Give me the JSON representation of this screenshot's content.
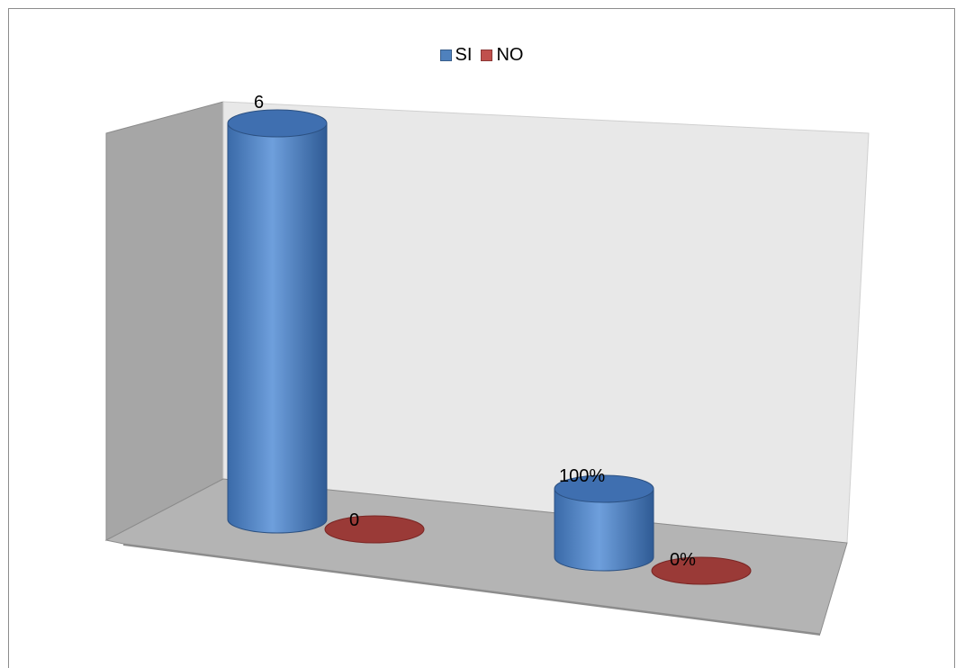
{
  "chart_data": {
    "type": "bar",
    "style": "3d-cylinder",
    "categories": [
      "",
      ""
    ],
    "series": [
      {
        "name": "SI",
        "color": "#4f81bd",
        "values": [
          6,
          1.0
        ],
        "labels": [
          "6",
          "100%"
        ]
      },
      {
        "name": "NO",
        "color": "#c0504d",
        "values": [
          0,
          0.0
        ],
        "labels": [
          "0",
          "0%"
        ]
      }
    ],
    "title": "",
    "xlabel": "",
    "ylabel": "",
    "legend_position": "top-center",
    "grid": false
  }
}
